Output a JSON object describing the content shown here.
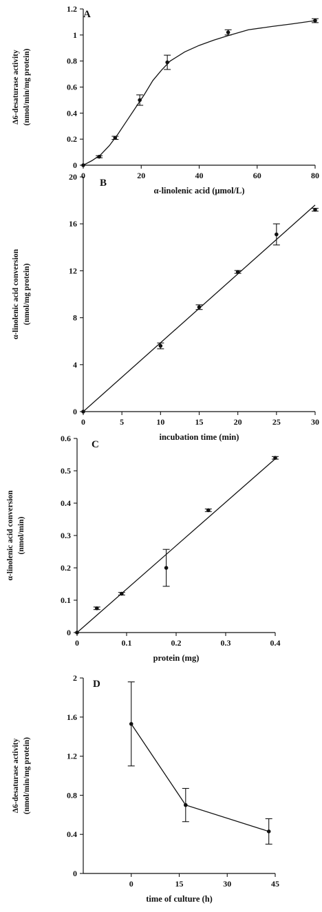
{
  "chart_data": [
    {
      "type": "line",
      "panel": "A",
      "xlabel": "α-linolenic acid (μmol/L)",
      "ylabel_lines": [
        "Δ6-desaturase activity",
        "(nmol/min/mg protein)"
      ],
      "xlim": [
        0,
        80
      ],
      "ylim": [
        0,
        1.2
      ],
      "xticks": [
        0,
        20,
        40,
        60,
        80
      ],
      "yticks": [
        0,
        0.2,
        0.4,
        0.6,
        0.8,
        1,
        1.2
      ],
      "ytick_labels": [
        "0",
        "0.2",
        "0.4",
        "0.6",
        "0.8",
        "1",
        "1.2"
      ],
      "series": [
        {
          "x": [
            0,
            5.5,
            11,
            19.5,
            29,
            50,
            80
          ],
          "y": [
            0,
            0.065,
            0.21,
            0.5,
            0.79,
            1.02,
            1.11
          ],
          "err": [
            0,
            0.008,
            0.012,
            0.04,
            0.055,
            0.02,
            0.015
          ]
        }
      ],
      "fit_curve": {
        "x": [
          0,
          3,
          6,
          9,
          12,
          15,
          18,
          21,
          24,
          27,
          30,
          35,
          40,
          45,
          50,
          57,
          65,
          72,
          80
        ],
        "y": [
          0,
          0.035,
          0.08,
          0.15,
          0.24,
          0.34,
          0.44,
          0.54,
          0.65,
          0.73,
          0.8,
          0.87,
          0.92,
          0.96,
          0.995,
          1.04,
          1.065,
          1.085,
          1.11
        ]
      },
      "grid": false
    },
    {
      "type": "line",
      "panel": "B",
      "xlabel": "incubation time (min)",
      "ylabel_lines": [
        "α-linolenic acid conversion",
        "(nmol/mg protein)"
      ],
      "xlim": [
        0,
        30
      ],
      "ylim": [
        0,
        20
      ],
      "xticks": [
        0,
        5,
        10,
        15,
        20,
        25,
        30
      ],
      "yticks": [
        0,
        4,
        8,
        12,
        16,
        20
      ],
      "ytick_labels": [
        "0",
        "4",
        "8",
        "12",
        "16",
        "20"
      ],
      "series": [
        {
          "x": [
            0,
            10,
            15,
            20,
            25,
            30
          ],
          "y": [
            0,
            5.6,
            8.9,
            11.9,
            15.1,
            17.2
          ],
          "err": [
            0,
            0.25,
            0.2,
            0.12,
            0.9,
            0.12
          ]
        }
      ],
      "fit_line": {
        "x": [
          0,
          30
        ],
        "y": [
          0,
          17.6
        ]
      },
      "grid": false
    },
    {
      "type": "line",
      "panel": "C",
      "xlabel": "protein (mg)",
      "ylabel_lines": [
        "α-linolenic acid conversion",
        "(nmol/min)"
      ],
      "xlim": [
        0,
        0.4
      ],
      "ylim": [
        0,
        0.6
      ],
      "xticks": [
        0,
        0.1,
        0.2,
        0.3,
        0.4
      ],
      "yticks": [
        0,
        0.1,
        0.2,
        0.3,
        0.4,
        0.5,
        0.6
      ],
      "ytick_labels": [
        "0",
        "0.1",
        "0.2",
        "0.3",
        "0.4",
        "0.5",
        "0.6"
      ],
      "series": [
        {
          "x": [
            0,
            0.04,
            0.09,
            0.18,
            0.265,
            0.4
          ],
          "y": [
            0,
            0.075,
            0.12,
            0.2,
            0.378,
            0.54
          ],
          "err": [
            0,
            0.004,
            0.004,
            0.057,
            0.004,
            0.004
          ]
        }
      ],
      "fit_line": {
        "x": [
          0,
          0.4
        ],
        "y": [
          0,
          0.537
        ]
      },
      "grid": false
    },
    {
      "type": "line",
      "panel": "D",
      "xlabel": "time of culture (h)",
      "ylabel_lines": [
        "Δ6-desaturase activity",
        "(nmol/min/mg protein)"
      ],
      "xlim": [
        -15,
        45
      ],
      "ylim": [
        0,
        2
      ],
      "xticks": [
        0,
        15,
        30,
        45
      ],
      "yticks": [
        0,
        0.4,
        0.8,
        1.2,
        1.6,
        2
      ],
      "ytick_labels": [
        "0",
        "0.4",
        "0.8",
        "1.2",
        "1.6",
        "2"
      ],
      "series": [
        {
          "x": [
            0,
            17,
            43
          ],
          "y": [
            1.53,
            0.7,
            0.43
          ],
          "err": [
            0.43,
            0.17,
            0.13
          ]
        }
      ],
      "grid": false
    }
  ]
}
